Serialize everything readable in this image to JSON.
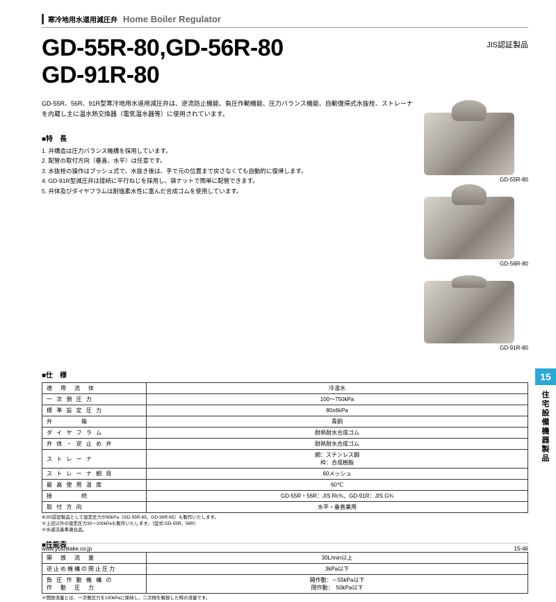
{
  "header": {
    "category_jp": "寒冷地用水道用減圧弁",
    "category_en": "Home Boiler Regulator"
  },
  "title": {
    "line1": "GD-55R-80,GD-56R-80",
    "line2": "GD-91R-80"
  },
  "jis_label": "JIS認証製品",
  "intro": "GD-55R、56R、91R型寒冷地用水道用減圧弁は、逆流防止機能、負圧作動機能、圧力バランス機能、自動復帰式水抜栓、ストレーナを内蔵し主に温水熱交換器（電気温水器等）に使用されています。",
  "features_heading": "■特　長",
  "features": [
    "1. 弁構造は圧力バランス機構を採用しています。",
    "2. 配管の取付方向（垂直、水平）は任意です。",
    "3. 水抜栓の操作はプッシュ式で、水抜き後は、手で元の位置まで戻さなくても自動的に復帰します。",
    "4. GD-91R型減圧弁は接続に平行ねじを採用し、袋ナットで簡単に配管できます。",
    "5. 弁体及びダイヤフラムは耐塩素水性に富んだ合成ゴムを使用しています。"
  ],
  "products": [
    {
      "label": "GD-55R-80",
      "flat": false
    },
    {
      "label": "GD-56R-80",
      "flat": false
    },
    {
      "label": "GD-91R-80",
      "flat": true
    }
  ],
  "spec_heading": "■仕　様",
  "spec_rows": [
    {
      "label": "適　用　流　体",
      "value": "冷温水"
    },
    {
      "label": "一 次 側 圧 力",
      "value": "100～750kPa"
    },
    {
      "label": "標 準 設 定 圧 力",
      "value": "80±6kPa"
    },
    {
      "label": "弁　　　　箱",
      "value": "青銅"
    },
    {
      "label": "ダ イ ヤ フ ラ ム",
      "value": "耐熱耐水合成ゴム"
    },
    {
      "label": "弁 体 ・ 逆 止 め 弁",
      "value": "耐熱耐水合成ゴム"
    },
    {
      "label": "ス ト レ ー ナ",
      "value": "網：ステンレス鋼\n枠：合成樹脂"
    },
    {
      "label": "ス ト レ ー ナ 網 目",
      "value": "60メッシュ"
    },
    {
      "label": "最 高 使 用 温 度",
      "value": "60℃"
    },
    {
      "label": "接　　　　続",
      "value": "GD-55R・56R：JIS Rc¾、GD-91R：JIS G¾"
    },
    {
      "label": "取 付 方 向",
      "value": "水平・垂直兼用"
    }
  ],
  "spec_notes": [
    "※JIS認証製品として設定圧力が65kPa（GD-55R-65、GD-56R-65）も製作いたします。",
    "※上記以外の設定圧力30～200kPaも製作いたします。（型式:GD-55R、56R）",
    "※水道法基準適合品。"
  ],
  "perf_heading": "■性能表",
  "perf_rows": [
    {
      "label": "開　放　流　量",
      "value": "30L/min以上"
    },
    {
      "label": "逆止め機構の閉止圧力",
      "value": "3kPa以下"
    },
    {
      "label": "負 圧 作 動 機 構 の\n作　動　圧　力",
      "value": "開作動：－55kPa以下\n閉作動：　50kPa以下"
    }
  ],
  "perf_note": "※開放流量とは、一次側圧力を100kPaに保持し、二次側を解放した時の流量です。",
  "side_tab": {
    "number": "15",
    "text": "住宅設備機器製品"
  },
  "footer": {
    "url": "www.yoshitake.co.jp",
    "page": "15-46"
  },
  "colors": {
    "tab_bg": "#2aa8d8",
    "border": "#333333",
    "text": "#000000"
  }
}
